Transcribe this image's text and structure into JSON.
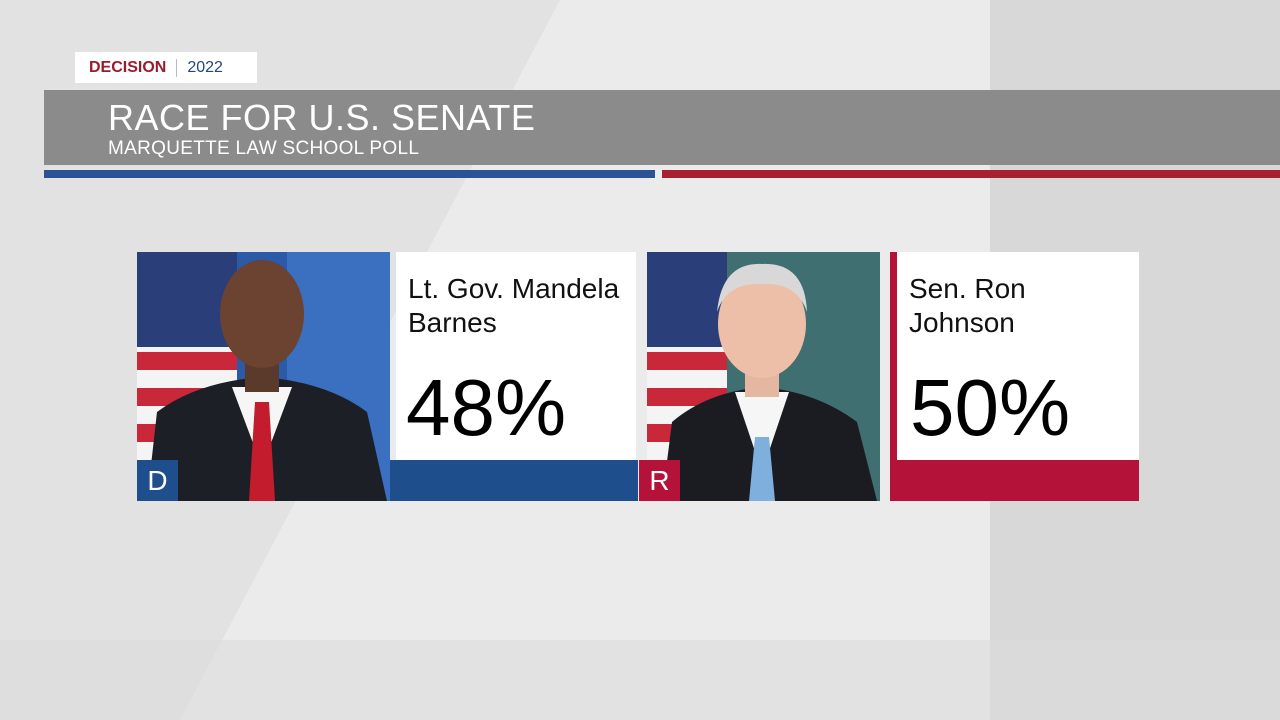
{
  "badge": {
    "label": "DECISION",
    "year": "2022"
  },
  "header": {
    "title": "RACE FOR U.S. SENATE",
    "subtitle": "MARQUETTE LAW SCHOOL POLL"
  },
  "candidates": [
    {
      "party": "D",
      "name_lines": [
        "Lt. Gov. Mandela",
        "Barnes"
      ],
      "percent": "48%"
    },
    {
      "party": "R",
      "name_lines": [
        "Sen. Ron",
        "Johnson"
      ],
      "percent": "50%"
    }
  ]
}
